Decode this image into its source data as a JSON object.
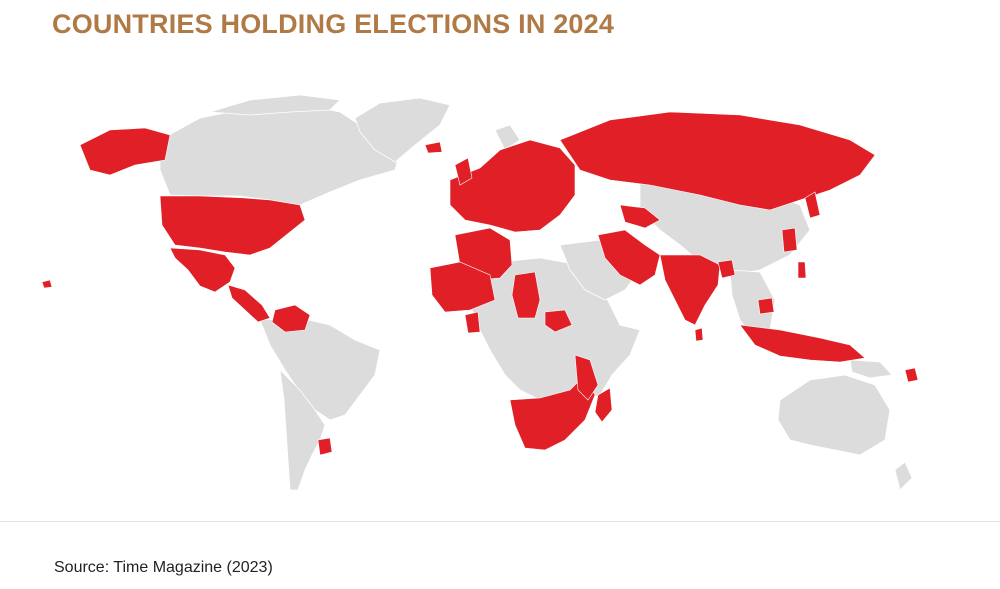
{
  "title": "COUNTRIES HOLDING ELECTIONS IN 2024",
  "source": "Source: Time Magazine (2023)",
  "colors": {
    "title": "#b07a47",
    "election": "#e02026",
    "no_election": "#dcdcdc",
    "border": "#ffffff",
    "source_text": "#222222"
  },
  "legend_categories": [
    "election",
    "no_election"
  ]
}
